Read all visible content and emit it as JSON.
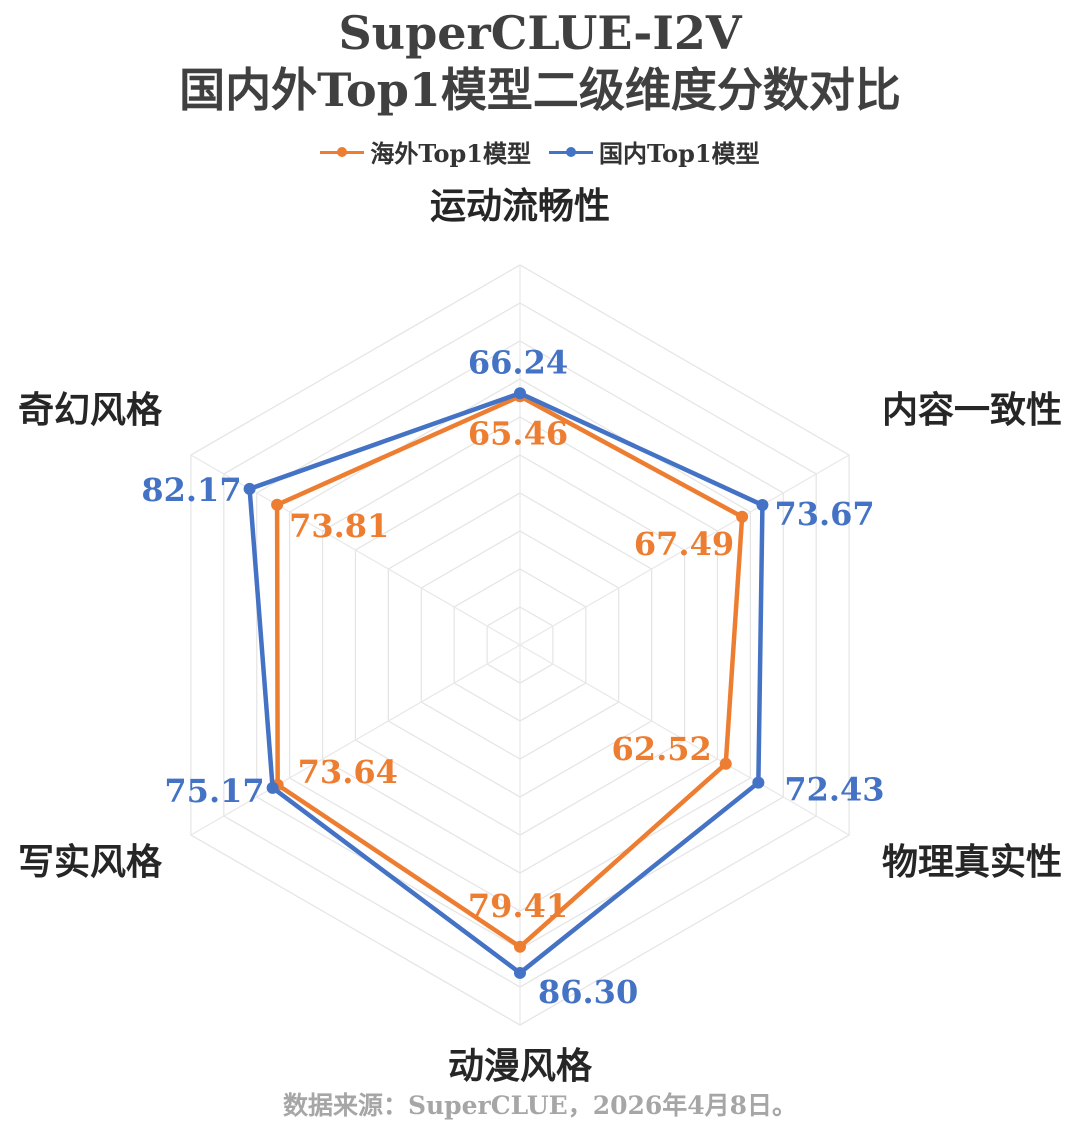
{
  "title": "SuperCLUE-I2V",
  "subtitle": "国内外Top1模型二级维度分数对比",
  "source": "数据来源：SuperCLUE，2026年4月8日。",
  "chart_data": {
    "type": "radar",
    "title": "SuperCLUE-I2V",
    "subtitle": "国内外Top1模型二级维度分数对比",
    "categories": [
      "运动流畅性",
      "内容一致性",
      "物理真实性",
      "动漫风格",
      "写实风格",
      "奇幻风格"
    ],
    "series": [
      {
        "name": "海外Top1模型",
        "color": "#ED7D31",
        "values": [
          65.46,
          67.49,
          62.52,
          79.41,
          73.64,
          73.81
        ]
      },
      {
        "name": "国内Top1模型",
        "color": "#4472C4",
        "values": [
          66.24,
          73.67,
          72.43,
          86.3,
          75.17,
          82.17
        ]
      }
    ],
    "rlim": [
      0,
      100
    ],
    "grid": true,
    "legend_position": "top"
  }
}
